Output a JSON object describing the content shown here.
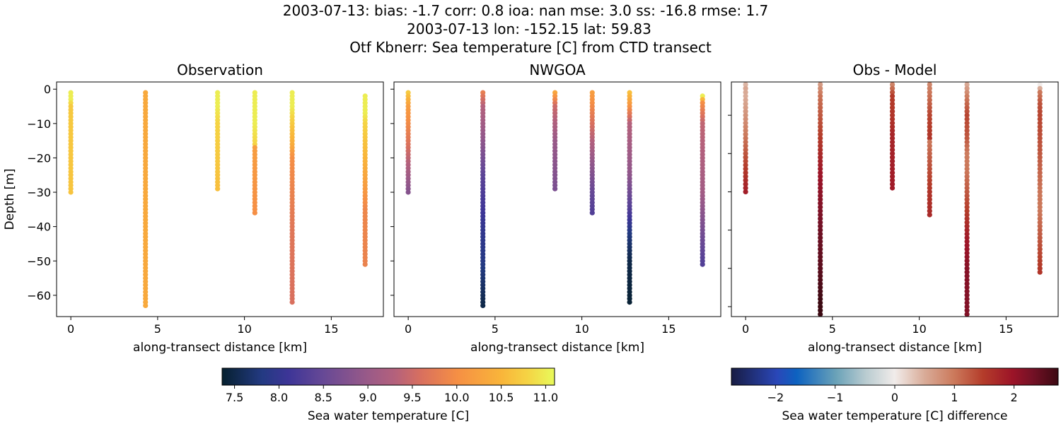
{
  "title_lines": [
    "2003-07-13: bias: -1.7  corr: 0.8  ioa: nan  mse: 3.0  ss: -16.8  rmse: 1.7",
    "2003-07-13 lon: -152.15 lat: 59.83",
    "Otf Kbnerr: Sea temperature [C] from CTD transect"
  ],
  "chart_data": [
    {
      "type": "scatter",
      "title": "Observation",
      "xlabel": "along-transect distance [km]",
      "ylabel": "Depth [m]",
      "xlim": [
        -0.82,
        18.0
      ],
      "ylim": [
        -66.2,
        2.1
      ],
      "xticks": [
        0,
        5,
        10,
        15
      ],
      "yticks": [
        0,
        -10,
        -20,
        -30,
        -40,
        -50,
        -60
      ],
      "show_ytick_labels": true,
      "colormap": "thermal",
      "field": "obs"
    },
    {
      "type": "scatter",
      "title": "NWGOA",
      "xlabel": "along-transect distance [km]",
      "xlim": [
        -0.82,
        18.0
      ],
      "ylim": [
        -66.2,
        2.1
      ],
      "xticks": [
        0,
        5,
        10,
        15
      ],
      "yticks": [
        0,
        -10,
        -20,
        -30,
        -40,
        -50,
        -60
      ],
      "show_ytick_labels": false,
      "colormap": "thermal",
      "field": "model"
    },
    {
      "type": "scatter",
      "title": "Obs - Model",
      "xlabel": "along-transect distance [km]",
      "xlim": [
        -0.82,
        18.0
      ],
      "ylim": [
        -62.6,
        -1.3
      ],
      "xticks": [
        0,
        5,
        10,
        15
      ],
      "yticks": [
        -10,
        -20,
        -30,
        -40,
        -50,
        -60
      ],
      "show_ytick_labels": false,
      "colormap": "balance",
      "field": "diff"
    }
  ],
  "stations": [
    {
      "distance_km": 0.0,
      "depth_start_m": 1,
      "max_depth_m": 30,
      "obs": [
        [
          1,
          11.0
        ],
        [
          3,
          11.0
        ],
        [
          5,
          10.7
        ],
        [
          30,
          10.65
        ]
      ],
      "model": [
        [
          1,
          10.7
        ],
        [
          5,
          10.2
        ],
        [
          15,
          9.7
        ],
        [
          25,
          9.1
        ],
        [
          30,
          8.8
        ]
      ]
    },
    {
      "distance_km": 4.3,
      "depth_start_m": 1,
      "max_depth_m": 63,
      "obs": [
        [
          1,
          10.35
        ],
        [
          63,
          10.35
        ]
      ],
      "model": [
        [
          1,
          9.8
        ],
        [
          5,
          9.3
        ],
        [
          15,
          8.9
        ],
        [
          25,
          8.4
        ],
        [
          40,
          8.0
        ],
        [
          50,
          7.85
        ],
        [
          63,
          7.5
        ]
      ]
    },
    {
      "distance_km": 8.45,
      "depth_start_m": 1,
      "max_depth_m": 29,
      "obs": [
        [
          1,
          11.0
        ],
        [
          5,
          11.0
        ],
        [
          10,
          10.8
        ],
        [
          29,
          10.6
        ]
      ],
      "model": [
        [
          1,
          10.3
        ],
        [
          5,
          9.5
        ],
        [
          15,
          9.0
        ],
        [
          29,
          8.7
        ]
      ]
    },
    {
      "distance_km": 10.6,
      "depth_start_m": 1,
      "max_depth_m": 36,
      "obs": [
        [
          1,
          11.0
        ],
        [
          10,
          11.0
        ],
        [
          16,
          10.8
        ],
        [
          17,
          10.2
        ],
        [
          36,
          10.0
        ]
      ],
      "model": [
        [
          1,
          10.2
        ],
        [
          10,
          9.6
        ],
        [
          20,
          9.0
        ],
        [
          30,
          8.5
        ],
        [
          36,
          8.3
        ]
      ]
    },
    {
      "distance_km": 12.75,
      "depth_start_m": 1,
      "max_depth_m": 62,
      "obs": [
        [
          1,
          11.0
        ],
        [
          5,
          11.0
        ],
        [
          10,
          10.7
        ],
        [
          16,
          10.4
        ],
        [
          20,
          10.0
        ],
        [
          40,
          9.7
        ],
        [
          62,
          9.6
        ]
      ],
      "model": [
        [
          1,
          10.6
        ],
        [
          4,
          10.2
        ],
        [
          10,
          9.3
        ],
        [
          25,
          8.9
        ],
        [
          35,
          8.3
        ],
        [
          42,
          7.8
        ],
        [
          50,
          7.5
        ],
        [
          62,
          7.4
        ]
      ]
    },
    {
      "distance_km": 16.95,
      "depth_start_m": 2,
      "max_depth_m": 51,
      "obs": [
        [
          2,
          11.0
        ],
        [
          7,
          11.0
        ],
        [
          10,
          10.8
        ],
        [
          20,
          10.5
        ],
        [
          28,
          10.2
        ],
        [
          35,
          9.9
        ],
        [
          51,
          9.85
        ]
      ],
      "model": [
        [
          2,
          11.0
        ],
        [
          4,
          10.0
        ],
        [
          10,
          9.4
        ],
        [
          30,
          9.1
        ],
        [
          40,
          8.7
        ],
        [
          51,
          8.3
        ]
      ]
    }
  ],
  "colorbars": [
    {
      "label": "Sea water temperature [C]",
      "range": [
        7.36,
        11.1
      ],
      "ticks": [
        "7.5",
        "8.0",
        "8.5",
        "9.0",
        "9.5",
        "10.0",
        "10.5",
        "11.0"
      ],
      "colormap": "thermal"
    },
    {
      "label": "Sea water temperature [C] difference",
      "range": [
        -2.74,
        2.74
      ],
      "ticks": [
        "−2",
        "−1",
        "0",
        "1",
        "2"
      ],
      "colormap": "balance"
    }
  ],
  "colormaps": {
    "thermal": [
      [
        0,
        "#06202f"
      ],
      [
        0.12,
        "#233a82"
      ],
      [
        0.2,
        "#3d3597"
      ],
      [
        0.3,
        "#654896"
      ],
      [
        0.44,
        "#9a5a88"
      ],
      [
        0.52,
        "#b4617c"
      ],
      [
        0.6,
        "#d9705e"
      ],
      [
        0.71,
        "#f69044"
      ],
      [
        0.84,
        "#f9b53a"
      ],
      [
        0.92,
        "#f5d444"
      ],
      [
        1,
        "#e8fa5b"
      ]
    ],
    "balance": [
      [
        0,
        "#181c43"
      ],
      [
        0.14,
        "#2a47b8"
      ],
      [
        0.2,
        "#0d62c0"
      ],
      [
        0.32,
        "#6aa2b8"
      ],
      [
        0.41,
        "#b8cbd0"
      ],
      [
        0.5,
        "#f1ecea"
      ],
      [
        0.59,
        "#d9ac99"
      ],
      [
        0.68,
        "#cc7a5c"
      ],
      [
        0.77,
        "#b43c2a"
      ],
      [
        0.86,
        "#9c1428"
      ],
      [
        0.92,
        "#751126"
      ],
      [
        1,
        "#3c0912"
      ]
    ]
  }
}
